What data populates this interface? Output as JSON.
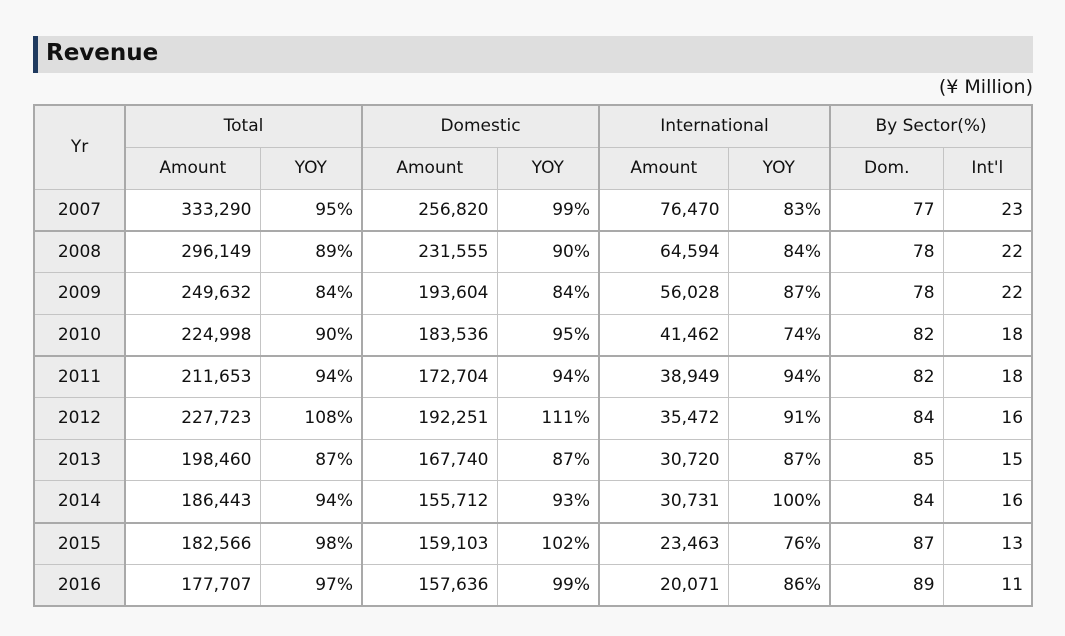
{
  "title": "Revenue",
  "unit": "(¥ Million)",
  "table": {
    "yr_label": "Yr",
    "groups": [
      "Total",
      "Domestic",
      "International",
      "By Sector(%)"
    ],
    "subheaders": [
      "Amount",
      "YOY",
      "Amount",
      "YOY",
      "Amount",
      "YOY",
      "Dom.",
      "Int'l"
    ],
    "rows": [
      [
        "2007",
        "333,290",
        "95%",
        "256,820",
        "99%",
        "76,470",
        "83%",
        "77",
        "23"
      ],
      [
        "2008",
        "296,149",
        "89%",
        "231,555",
        "90%",
        "64,594",
        "84%",
        "78",
        "22"
      ],
      [
        "2009",
        "249,632",
        "84%",
        "193,604",
        "84%",
        "56,028",
        "87%",
        "78",
        "22"
      ],
      [
        "2010",
        "224,998",
        "90%",
        "183,536",
        "95%",
        "41,462",
        "74%",
        "82",
        "18"
      ],
      [
        "2011",
        "211,653",
        "94%",
        "172,704",
        "94%",
        "38,949",
        "94%",
        "82",
        "18"
      ],
      [
        "2012",
        "227,723",
        "108%",
        "192,251",
        "111%",
        "35,472",
        "91%",
        "84",
        "16"
      ],
      [
        "2013",
        "198,460",
        "87%",
        "167,740",
        "87%",
        "30,720",
        "87%",
        "85",
        "15"
      ],
      [
        "2014",
        "186,443",
        "94%",
        "155,712",
        "93%",
        "30,731",
        "100%",
        "84",
        "16"
      ],
      [
        "2015",
        "182,566",
        "98%",
        "159,103",
        "102%",
        "23,463",
        "76%",
        "87",
        "13"
      ],
      [
        "2016",
        "177,707",
        "97%",
        "157,636",
        "99%",
        "20,071",
        "86%",
        "89",
        "11"
      ]
    ]
  }
}
